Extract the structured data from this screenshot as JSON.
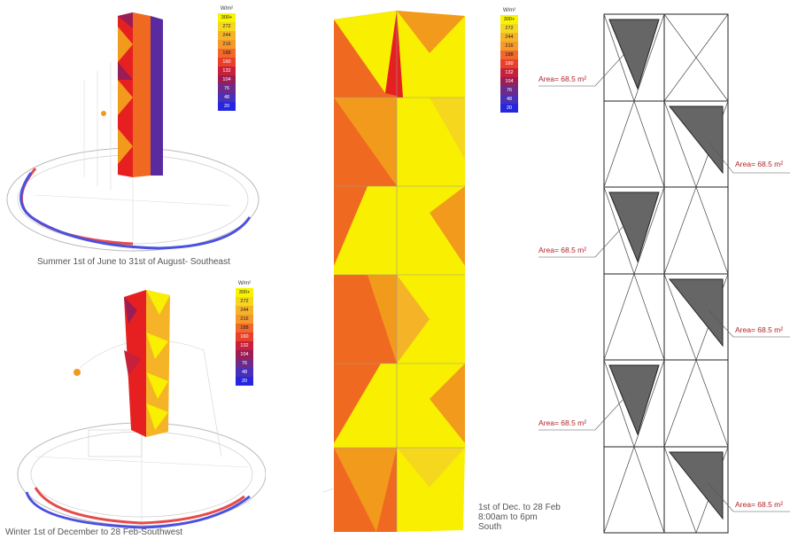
{
  "legend": {
    "unit": "W/m²",
    "steps": [
      {
        "label": "300+",
        "color": "#f8f400"
      },
      {
        "label": "272",
        "color": "#f5d81e"
      },
      {
        "label": "244",
        "color": "#f5b427"
      },
      {
        "label": "216",
        "color": "#f59a2a"
      },
      {
        "label": "188",
        "color": "#f0682b"
      },
      {
        "label": "160",
        "color": "#e8402a"
      },
      {
        "label": "132",
        "color": "#c8203a"
      },
      {
        "label": "104",
        "color": "#9a1d55"
      },
      {
        "label": "76",
        "color": "#6b2a8c"
      },
      {
        "label": "48",
        "color": "#4a2fb8"
      },
      {
        "label": "20",
        "color": "#2626e0"
      }
    ]
  },
  "captions": {
    "summer": "Summer 1st of June to 31st of August- Southeast",
    "winter": "Winter 1st of December to 28 Feb-Southwest",
    "south": "1st of Dec. to 28 Feb\n8:00am to 6pm\nSouth"
  },
  "area_labels": {
    "left_top": "Area= 68.5 m²",
    "left_mid": "Area= 68.5 m²",
    "left_bottom": "Area= 68.5 m²",
    "right_top": "Area= 68.5 m²",
    "right_mid": "Area= 68.5 m²",
    "right_bottom": "Area= 68.5 m²"
  },
  "colors": {
    "yellow": "#f8f000",
    "orange": "#f29a1c",
    "dark_orange": "#ef6a20",
    "red": "#e62020",
    "purple": "#5a2aa0",
    "panel_gray": "#666666",
    "sun": "#f29a1c",
    "path_red": "#e84a4a",
    "path_blue": "#4a50e0"
  }
}
